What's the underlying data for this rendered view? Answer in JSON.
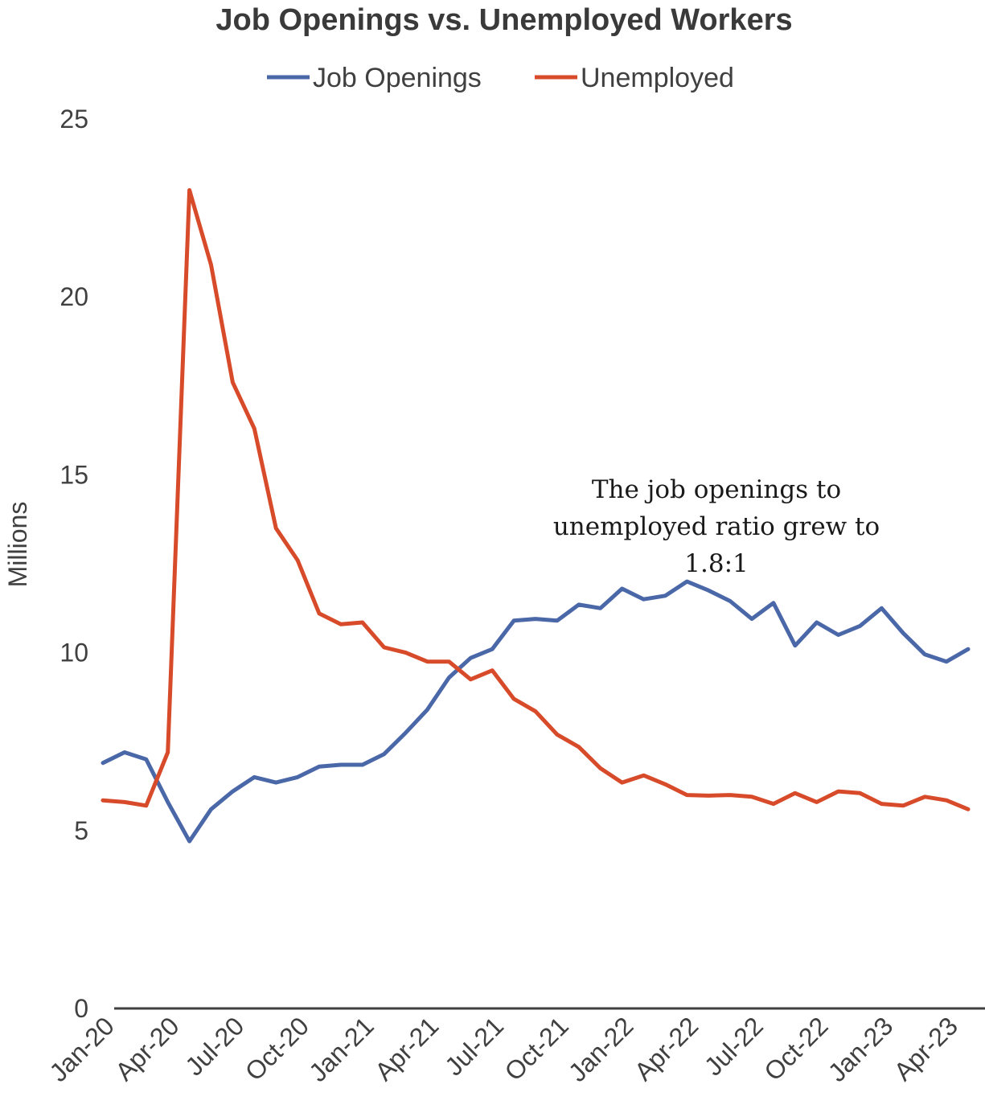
{
  "chart_data": {
    "type": "line",
    "title": "Job Openings vs. Unemployed Workers",
    "ylabel": "Millions",
    "ylim": [
      0,
      25
    ],
    "yticks": [
      "0",
      "5",
      "10",
      "15",
      "20",
      "25"
    ],
    "x_tick_labels": [
      "Jan-20",
      "Apr-20",
      "Jul-20",
      "Oct-20",
      "Jan-21",
      "Apr-21",
      "Jul-21",
      "Oct-21",
      "Jan-22",
      "Apr-22",
      "Jul-22",
      "Oct-22",
      "Jan-23",
      "Apr-23"
    ],
    "x": [
      "Jan-20",
      "Feb-20",
      "Mar-20",
      "Apr-20",
      "May-20",
      "Jun-20",
      "Jul-20",
      "Aug-20",
      "Sep-20",
      "Oct-20",
      "Nov-20",
      "Dec-20",
      "Jan-21",
      "Feb-21",
      "Mar-21",
      "Apr-21",
      "May-21",
      "Jun-21",
      "Jul-21",
      "Aug-21",
      "Sep-21",
      "Oct-21",
      "Nov-21",
      "Dec-21",
      "Jan-22",
      "Feb-22",
      "Mar-22",
      "Apr-22",
      "May-22",
      "Jun-22",
      "Jul-22",
      "Aug-22",
      "Sep-22",
      "Oct-22",
      "Nov-22",
      "Dec-22",
      "Jan-23",
      "Feb-23",
      "Mar-23",
      "Apr-23",
      "May-23"
    ],
    "legend_position": "top",
    "grid": false,
    "series": [
      {
        "name": "Job Openings",
        "color": "#4a67a8",
        "values": [
          6.9,
          7.2,
          7.0,
          5.8,
          4.7,
          5.6,
          6.1,
          6.5,
          6.35,
          6.5,
          6.8,
          6.85,
          6.85,
          7.15,
          7.75,
          8.4,
          9.3,
          9.85,
          10.1,
          10.9,
          10.95,
          10.9,
          11.35,
          11.25,
          11.8,
          11.5,
          11.6,
          12.0,
          11.75,
          11.45,
          10.95,
          11.4,
          10.2,
          10.85,
          10.5,
          10.75,
          11.25,
          10.55,
          9.95,
          9.75,
          10.1
        ]
      },
      {
        "name": "Unemployed",
        "color": "#d84b2a",
        "values": [
          5.85,
          5.8,
          5.7,
          7.2,
          23.0,
          20.9,
          17.6,
          16.3,
          13.5,
          12.6,
          11.1,
          10.8,
          10.85,
          10.15,
          10.0,
          9.75,
          9.75,
          9.25,
          9.5,
          8.7,
          8.35,
          7.7,
          7.35,
          6.75,
          6.35,
          6.55,
          6.3,
          6.0,
          5.98,
          6.0,
          5.95,
          5.75,
          6.05,
          5.8,
          6.1,
          6.05,
          5.75,
          5.7,
          5.95,
          5.85,
          5.6
        ]
      }
    ],
    "annotation": [
      "The job openings to",
      "unemployed ratio grew to",
      "1.8:1"
    ]
  }
}
